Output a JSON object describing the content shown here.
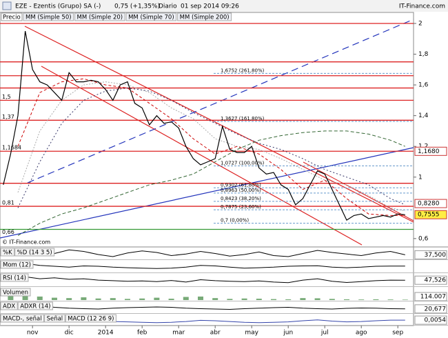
{
  "chart_data": [
    {
      "type": "line",
      "title": "EZE - Ezentis (Grupo) SA (-)",
      "quote": "0,75 (+1,35%)",
      "period": "Diario",
      "date": "01 sep 2014 09:26",
      "source": "IT-Finance.com",
      "watermark": "© IT-Finance.com",
      "tab": "Precio",
      "xlim": [
        0.11,
        11.43
      ],
      "ylim": [
        0.55,
        2.07
      ],
      "xticks": [
        {
          "value": 1,
          "label": "nov"
        },
        {
          "value": 2,
          "label": "dic"
        },
        {
          "value": 3,
          "label": "2014"
        },
        {
          "value": 4,
          "label": "feb"
        },
        {
          "value": 5,
          "label": "mar"
        },
        {
          "value": 6,
          "label": "abr"
        },
        {
          "value": 7,
          "label": "may"
        },
        {
          "value": 8,
          "label": "jun"
        },
        {
          "value": 9,
          "label": "jul"
        },
        {
          "value": 10,
          "label": "ago"
        },
        {
          "value": 11,
          "label": "sep"
        }
      ],
      "yticks": [
        2,
        {
          "value": 1.8,
          "label": "1,8"
        },
        {
          "value": 1.6,
          "label": "1,6"
        },
        {
          "value": 1.4,
          "label": "1,4"
        },
        {
          "value": 1.2,
          "label": "1,2"
        },
        1,
        {
          "value": 0.6,
          "label": "0,6"
        }
      ],
      "series": [
        {
          "name": "MM (Simple 50)",
          "color": "#aaaaaa",
          "dash": "2,2",
          "x": [
            0.6,
            1.2,
            1.8,
            2.4,
            3,
            3.6,
            4.2,
            4.8,
            5.4,
            6,
            6.6,
            7.2,
            7.8,
            8.4,
            9,
            9.6,
            10.2,
            10.8,
            11.2
          ],
          "values": [
            0.9,
            1.3,
            1.5,
            1.6,
            1.62,
            1.6,
            1.55,
            1.45,
            1.38,
            1.25,
            1.2,
            1.18,
            1.12,
            1.05,
            0.98,
            0.95,
            0.88,
            0.8,
            0.78
          ]
        },
        {
          "name": "MM (Simple 20)",
          "color": "#cc0000",
          "dash": "4,3",
          "x": [
            0.6,
            1.2,
            1.8,
            2.4,
            3,
            3.6,
            4.2,
            4.8,
            5.4,
            6,
            6.6,
            7.2,
            7.8,
            8.4,
            9,
            9.6,
            10.2,
            10.8,
            11.2
          ],
          "values": [
            1.2,
            1.55,
            1.62,
            1.64,
            1.6,
            1.58,
            1.48,
            1.38,
            1.25,
            1.15,
            1.2,
            1.15,
            1.05,
            0.92,
            0.98,
            0.86,
            0.76,
            0.75,
            0.75
          ]
        },
        {
          "name": "MM (Simple 70)",
          "color": "#333366",
          "dash": "2,3",
          "x": [
            0.6,
            1.2,
            1.8,
            2.4,
            3,
            3.6,
            4.2,
            4.8,
            5.4,
            6,
            6.6,
            7.2,
            7.8,
            8.4,
            9,
            9.6,
            10.2,
            10.8,
            11.2
          ],
          "values": [
            0.8,
            1.1,
            1.35,
            1.5,
            1.56,
            1.58,
            1.56,
            1.5,
            1.42,
            1.35,
            1.28,
            1.22,
            1.18,
            1.12,
            1.05,
            1,
            0.95,
            0.86,
            0.82
          ]
        },
        {
          "name": "MM (Simple 200)",
          "color": "#336633",
          "dash": "5,3",
          "x": [
            0.6,
            1.2,
            1.8,
            2.4,
            3,
            3.6,
            4.2,
            4.8,
            5.4,
            6,
            6.6,
            7.2,
            7.8,
            8.4,
            9,
            9.6,
            10.2,
            10.8,
            11.2
          ],
          "values": [
            0.62,
            0.7,
            0.76,
            0.8,
            0.85,
            0.9,
            0.95,
            0.98,
            1.02,
            1.1,
            1.18,
            1.24,
            1.27,
            1.29,
            1.3,
            1.3,
            1.28,
            1.24,
            1.2
          ]
        },
        {
          "name": "Precio",
          "color": "#000000",
          "x": [
            0.2,
            0.4,
            0.6,
            0.8,
            1,
            1.2,
            1.4,
            1.6,
            1.8,
            2,
            2.2,
            2.4,
            2.6,
            2.8,
            3,
            3.2,
            3.4,
            3.6,
            3.8,
            4,
            4.2,
            4.4,
            4.6,
            4.8,
            5,
            5.2,
            5.4,
            5.6,
            5.8,
            6,
            6.2,
            6.4,
            6.6,
            6.8,
            7,
            7.2,
            7.4,
            7.6,
            7.8,
            8,
            8.2,
            8.4,
            8.6,
            8.8,
            9,
            9.2,
            9.4,
            9.6,
            9.8,
            10,
            10.2,
            10.4,
            10.6,
            10.8,
            11,
            11.2
          ],
          "values": [
            0.95,
            1.15,
            1.4,
            1.95,
            1.7,
            1.62,
            1.6,
            1.55,
            1.5,
            1.68,
            1.62,
            1.62,
            1.63,
            1.62,
            1.57,
            1.5,
            1.6,
            1.62,
            1.48,
            1.45,
            1.34,
            1.4,
            1.35,
            1.36,
            1.32,
            1.2,
            1.12,
            1.08,
            1.1,
            1.12,
            1.33,
            1.18,
            1.16,
            1.16,
            1.2,
            1.06,
            1.02,
            1.03,
            0.95,
            0.92,
            0.82,
            0.86,
            0.95,
            1.04,
            1.02,
            0.92,
            0.82,
            0.72,
            0.75,
            0.76,
            0.73,
            0.74,
            0.75,
            0.74,
            0.76,
            0.755
          ]
        }
      ],
      "levels": [
        {
          "value": 1.5,
          "label": "1,5"
        },
        {
          "value": 1.37,
          "label": "1,37"
        },
        {
          "value": 1.1684,
          "label": "1,1684"
        },
        {
          "value": 0.81,
          "label": "0,81"
        }
      ],
      "unlabeled_levels": [
        2,
        1.75,
        1.66,
        1.58,
        0.96
      ],
      "support": {
        "value": 0.66,
        "label": "0,66",
        "color": "#339933"
      },
      "fib_levels": [
        {
          "value": 1.6752,
          "label": "1,6752 (261,80%)"
        },
        {
          "value": 1.3627,
          "label": "1,3627 (161,80%)"
        },
        {
          "value": 1.0727,
          "label": "1,0727 (100,00%)"
        },
        {
          "value": 0.9302,
          "label": "0,9302 (61,80%)"
        },
        {
          "value": 0.8963,
          "label": "0,8963 (50,00%)"
        },
        {
          "value": 0.8423,
          "label": "0,8423 (38,20%)"
        },
        {
          "value": 0.7875,
          "label": "0,7875 (23,60%)"
        },
        {
          "value": 0.7,
          "label": "0,7 (0,00%)"
        }
      ],
      "price_boxes": [
        {
          "value": 1.168,
          "label": "1,1680",
          "bg": "#ffffff"
        },
        {
          "value": 0.828,
          "label": "0,8280",
          "bg": "#ffffff"
        },
        {
          "value": 0.7555,
          "label": "0,7555",
          "bg": "#ffee44"
        }
      ]
    },
    {
      "type": "line",
      "ylim": [
        0,
        100
      ],
      "x": [
        0.4,
        0.8,
        1.2,
        1.6,
        2,
        2.4,
        2.8,
        3.2,
        3.6,
        4,
        4.4,
        4.8,
        5.2,
        5.6,
        6,
        6.4,
        6.8,
        7.2,
        7.6,
        8,
        8.4,
        8.8,
        9.2,
        9.6,
        10,
        10.4,
        10.8,
        11.2
      ],
      "series": [
        {
          "name": "%K",
          "color": "#000000",
          "values": [
            80,
            60,
            30,
            50,
            85,
            70,
            40,
            20,
            55,
            75,
            60,
            30,
            45,
            70,
            50,
            25,
            40,
            65,
            30,
            20,
            50,
            80,
            60,
            45,
            30,
            55,
            70,
            37.5
          ],
          "last_label": "37,500"
        }
      ],
      "extra_legend": [
        {
          "text": "%D (14 3 5)",
          "color": "#cc0000"
        }
      ]
    },
    {
      "type": "line",
      "ylim": [
        -0.3,
        0.3
      ],
      "x": [
        0.4,
        0.8,
        1.2,
        1.6,
        2,
        2.4,
        2.8,
        3.2,
        3.6,
        4,
        4.4,
        4.8,
        5.2,
        5.6,
        6,
        6.4,
        6.8,
        7.2,
        7.6,
        8,
        8.4,
        8.8,
        9.2,
        9.6,
        10,
        10.4,
        10.8,
        11.2
      ],
      "series": [
        {
          "name": "Mom (12)",
          "color": "#000000",
          "values": [
            0.2,
            0.15,
            0.05,
            0,
            -0.05,
            0.02,
            0,
            -0.05,
            -0.08,
            -0.1,
            -0.12,
            -0.1,
            -0.05,
            0.05,
            0.02,
            -0.05,
            -0.1,
            -0.08,
            -0.05,
            0,
            0.02,
            0.03,
            -0.05,
            -0.08,
            -0.05,
            0,
            0.01,
            0.01
          ]
        }
      ]
    },
    {
      "type": "line",
      "ylim": [
        20,
        80
      ],
      "x": [
        0.4,
        0.8,
        1.2,
        1.6,
        2,
        2.4,
        2.8,
        3.2,
        3.6,
        4,
        4.4,
        4.8,
        5.2,
        5.6,
        6,
        6.4,
        6.8,
        7.2,
        7.6,
        8,
        8.4,
        8.8,
        9.2,
        9.6,
        10,
        10.4,
        10.8,
        11.2
      ],
      "series": [
        {
          "name": "RSI (14)",
          "color": "#000000",
          "values": [
            70,
            65,
            55,
            60,
            52,
            55,
            48,
            45,
            42,
            44,
            40,
            46,
            38,
            50,
            45,
            42,
            40,
            44,
            38,
            35,
            48,
            55,
            42,
            36,
            40,
            45,
            48,
            47.526
          ],
          "last_label": "47,526"
        }
      ]
    },
    {
      "type": "bar",
      "ylim": [
        0,
        3000000
      ],
      "x": [
        0.4,
        0.8,
        1.2,
        1.6,
        2,
        2.4,
        2.8,
        3.2,
        3.6,
        4,
        4.4,
        4.8,
        5.2,
        5.6,
        6,
        6.4,
        6.8,
        7.2,
        7.6,
        8,
        8.4,
        8.8,
        9.2,
        9.6,
        10,
        10.4,
        10.8,
        11.2
      ],
      "series": [
        {
          "name": "Volumen",
          "color": "#77aa77",
          "values": [
            2500000,
            1800000,
            900000,
            600000,
            500000,
            700000,
            400000,
            500000,
            300000,
            400000,
            600000,
            350000,
            800000,
            900000,
            500000,
            300000,
            400000,
            350000,
            250000,
            200000,
            500000,
            450000,
            300000,
            200000,
            150000,
            200000,
            150000,
            114007
          ],
          "last_label": "114.007"
        }
      ]
    },
    {
      "type": "line",
      "ylim": [
        0,
        60
      ],
      "x": [
        0.4,
        0.8,
        1.2,
        1.6,
        2,
        2.4,
        2.8,
        3.2,
        3.6,
        4,
        4.4,
        4.8,
        5.2,
        5.6,
        6,
        6.4,
        6.8,
        7.2,
        7.6,
        8,
        8.4,
        8.8,
        9.2,
        9.6,
        10,
        10.4,
        10.8,
        11.2
      ],
      "series": [
        {
          "name": "ADX",
          "color": "#000000",
          "values": [
            45,
            50,
            40,
            30,
            25,
            22,
            20,
            25,
            28,
            30,
            32,
            30,
            25,
            22,
            20,
            18,
            22,
            25,
            28,
            30,
            25,
            22,
            20,
            24,
            26,
            25,
            22,
            20.677
          ],
          "last_label": "20,677"
        }
      ],
      "extra_legend": [
        {
          "text": "ADXR (14)",
          "color": "#cc0000"
        }
      ]
    },
    {
      "type": "line",
      "ylim": [
        -0.1,
        0.15
      ],
      "x": [
        0.4,
        0.8,
        1.2,
        1.6,
        2,
        2.4,
        2.8,
        3.2,
        3.6,
        4,
        4.4,
        4.8,
        5.2,
        5.6,
        6,
        6.4,
        6.8,
        7.2,
        7.6,
        8,
        8.4,
        8.8,
        9.2,
        9.6,
        10,
        10.4,
        10.8,
        11.2
      ],
      "series": [
        {
          "name": "MACD-, señal",
          "color": "#3344aa",
          "values": [
            0.1,
            0.12,
            0.08,
            0.03,
            0.01,
            0,
            -0.02,
            -0.03,
            -0.04,
            -0.05,
            -0.06,
            -0.05,
            -0.03,
            0,
            -0.01,
            -0.03,
            -0.05,
            -0.06,
            -0.05,
            -0.04,
            -0.01,
            0.01,
            -0.02,
            -0.04,
            -0.03,
            -0.01,
            0.005,
            0.0054
          ],
          "last_label": "0,0054"
        }
      ],
      "extra_legend": [
        {
          "text": "Señal",
          "color": "#cc0000"
        },
        {
          "text": "MACD (12 26 9)",
          "color": "#3344aa"
        }
      ]
    }
  ]
}
